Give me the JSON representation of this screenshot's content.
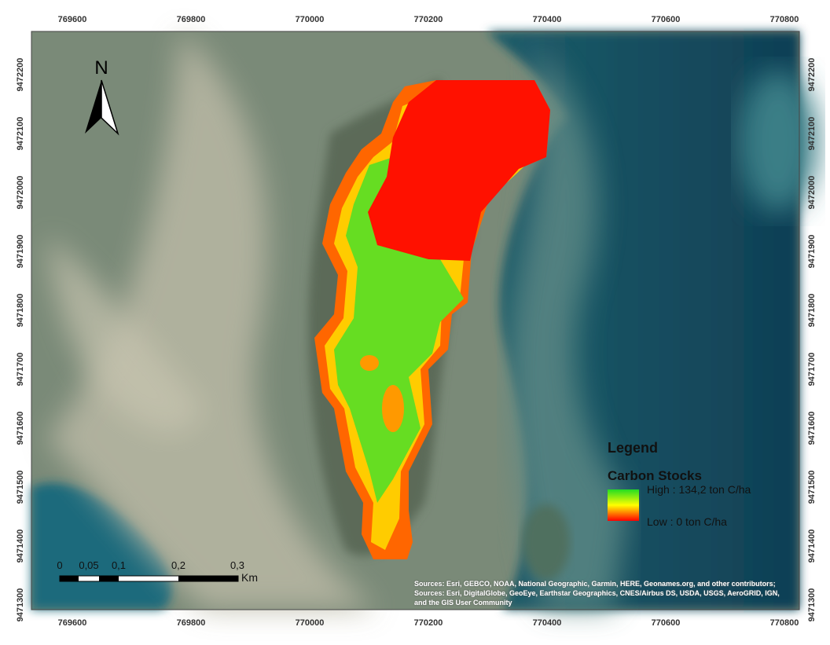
{
  "map": {
    "north": "N",
    "x_ticks": [
      "769600",
      "769800",
      "770000",
      "770200",
      "770400",
      "770600",
      "770800"
    ],
    "y_ticks": [
      "9472200",
      "9472100",
      "9472000",
      "9471900",
      "9471800",
      "9471700",
      "9471600",
      "9471500",
      "9471400",
      "9471300"
    ],
    "legend": {
      "title": "Legend",
      "layer": "Carbon Stocks",
      "high": "High : 134,2 ton C/ha",
      "low": "Low : 0 ton C/ha"
    },
    "scale_bar": {
      "labels": [
        "0",
        "0,05",
        "0,1",
        "0,2",
        "0,3"
      ],
      "unit": "Km"
    },
    "attribution": "Sources: Esri, GEBCO, NOAA, National Geographic, Garmin, HERE, Geonames.org, and other contributors; Sources: Esri, DigitalGlobe, GeoEye, Earthstar Geographics, CNES/Airbus DS, USDA, USGS, AeroGRID, IGN, and the GIS User Community"
  }
}
